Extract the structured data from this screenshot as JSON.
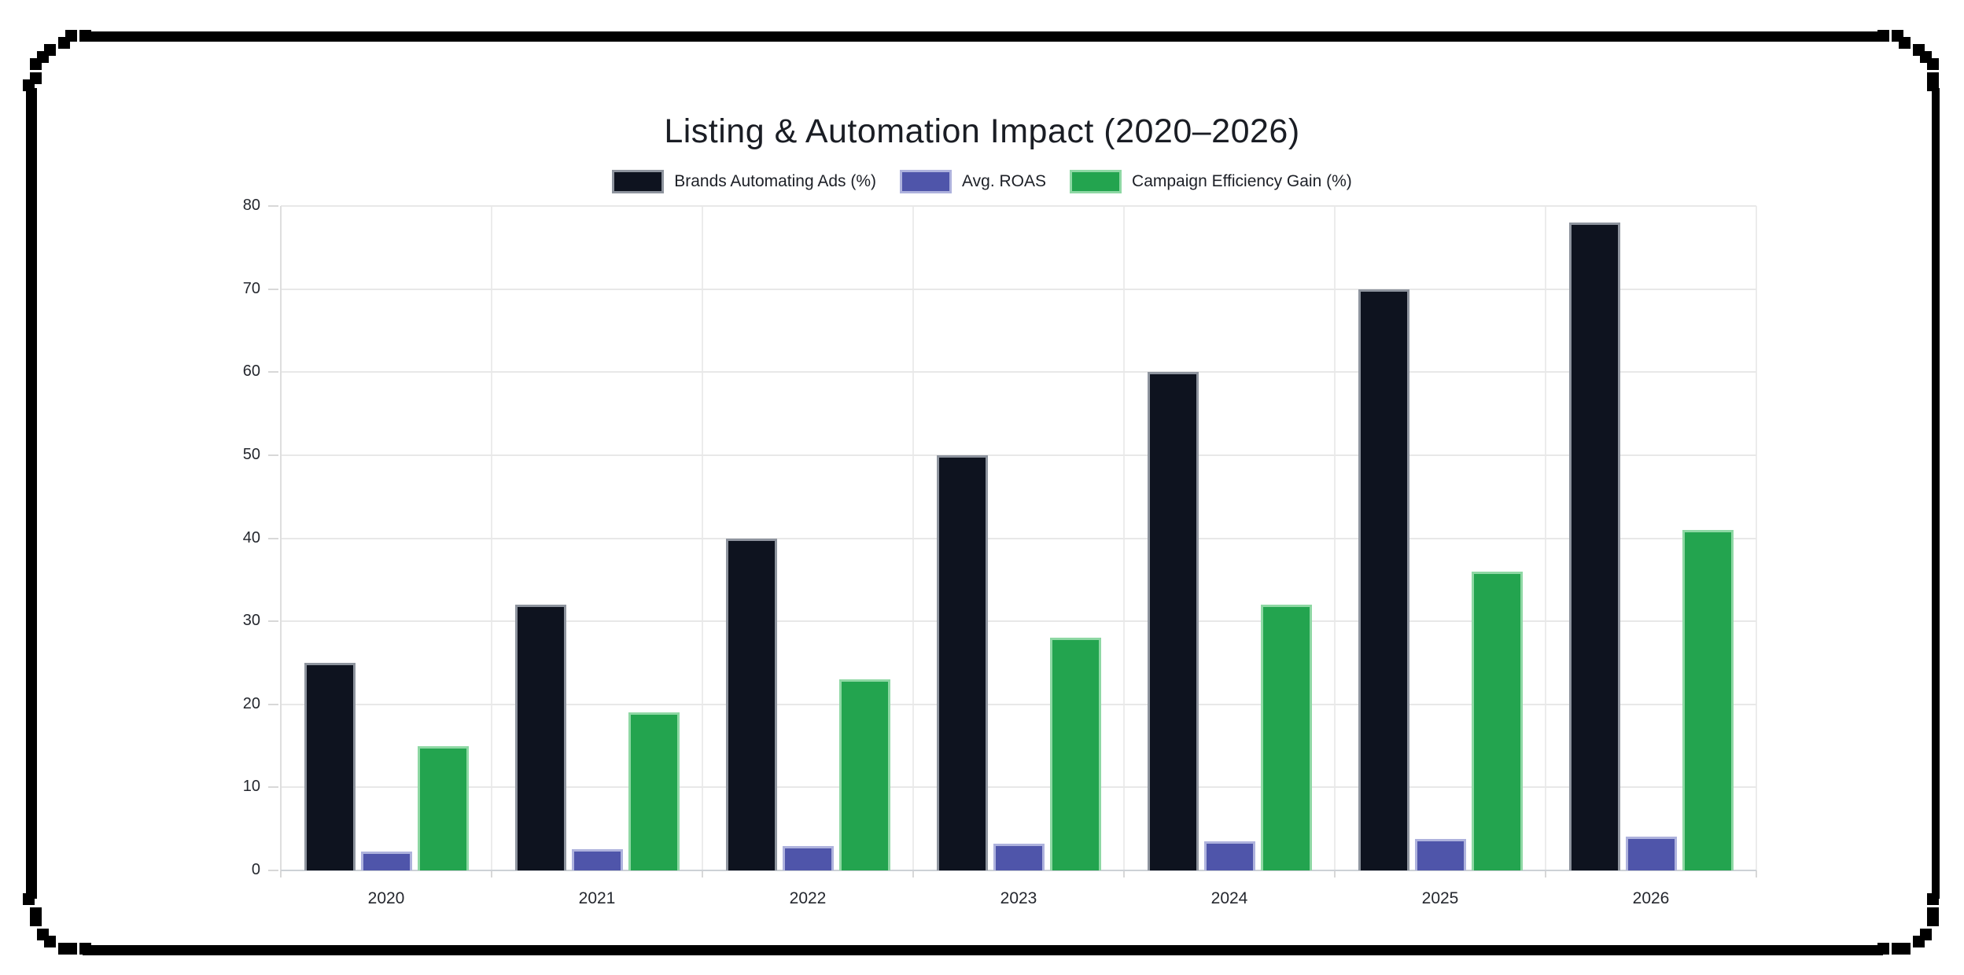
{
  "title": "Listing & Automation Impact (2020–2026)",
  "chrome": {
    "background": "#ffffff",
    "frame_color": "#000000"
  },
  "chart_data": {
    "type": "bar",
    "title": "Listing & Automation Impact (2020–2026)",
    "categories": [
      "2020",
      "2021",
      "2022",
      "2023",
      "2024",
      "2025",
      "2026"
    ],
    "series": [
      {
        "name": "Brands Automating Ads (%)",
        "color": "#0e131f",
        "border_color": "#8e949e",
        "values": [
          25,
          32,
          40,
          50,
          60,
          70,
          78
        ]
      },
      {
        "name": "Avg. ROAS",
        "color": "#4f55aa",
        "border_color": "#aeb2dd",
        "values": [
          2.3,
          2.6,
          2.9,
          3.2,
          3.5,
          3.8,
          4.1
        ]
      },
      {
        "name": "Campaign Efficiency Gain (%)",
        "color": "#23a44f",
        "border_color": "#8ed8a4",
        "values": [
          15,
          19,
          23,
          28,
          32,
          36,
          41
        ]
      }
    ],
    "ylim": [
      0,
      80
    ],
    "yticks": [
      0,
      10,
      20,
      30,
      40,
      50,
      60,
      70,
      80
    ],
    "grid": true,
    "legend_position": "top"
  }
}
